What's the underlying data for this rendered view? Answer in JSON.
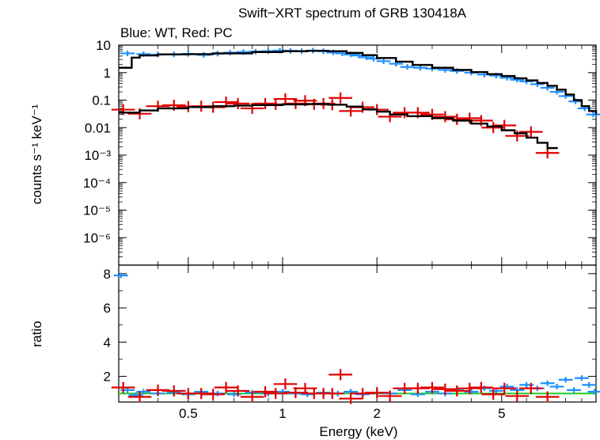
{
  "chart_data": {
    "type": "scatter",
    "title": "Swift−XRT spectrum of GRB 130418A",
    "subtitle": "Blue: WT, Red: PC",
    "xlabel": "Energy (keV)",
    "x_scale": "log",
    "xlim": [
      0.3,
      10
    ],
    "x_ticks": [
      {
        "value": 0.5,
        "label": "0.5"
      },
      {
        "value": 1,
        "label": "1"
      },
      {
        "value": 2,
        "label": "2"
      },
      {
        "value": 5,
        "label": "5"
      }
    ],
    "panels": [
      {
        "name": "spectrum",
        "ylabel": "counts s⁻¹ keV⁻¹",
        "y_scale": "log",
        "ylim": [
          1e-07,
          10
        ],
        "y_ticks": [
          {
            "value": 10,
            "label": "10"
          },
          {
            "value": 1,
            "label": "1"
          },
          {
            "value": 0.1,
            "label": "0.1"
          },
          {
            "value": 0.01,
            "label": "0.01"
          },
          {
            "value": 0.001,
            "label": "10⁻³"
          },
          {
            "value": 0.0001,
            "label": "10⁻⁴"
          },
          {
            "value": 1e-05,
            "label": "10⁻⁵"
          },
          {
            "value": 1e-06,
            "label": "10⁻⁶"
          }
        ],
        "series": [
          {
            "color": "#1E90FF",
            "x": [
              0.32,
              0.36,
              0.4,
              0.45,
              0.5,
              0.56,
              0.62,
              0.68,
              0.75,
              0.82,
              0.9,
              0.98,
              1.06,
              1.15,
              1.25,
              1.35,
              1.45,
              1.55,
              1.65,
              1.75,
              1.85,
              1.95,
              2.1,
              2.3,
              2.5,
              2.75,
              3.0,
              3.3,
              3.6,
              4.0,
              4.4,
              4.8,
              5.2,
              5.6,
              6.0,
              6.5,
              7.0,
              7.5,
              8.0,
              8.6,
              9.2,
              9.8
            ],
            "y": [
              5.0,
              4.7,
              4.5,
              4.6,
              4.8,
              4.4,
              4.9,
              5.3,
              5.6,
              5.8,
              6.0,
              6.3,
              6.2,
              6.0,
              6.3,
              6.0,
              5.4,
              5.0,
              4.6,
              4.2,
              3.6,
              3.2,
              2.6,
              2.1,
              1.6,
              1.5,
              1.4,
              1.25,
              1.15,
              1.0,
              0.85,
              0.78,
              0.65,
              0.55,
              0.48,
              0.38,
              0.28,
              0.2,
              0.14,
              0.09,
              0.05,
              0.03
            ]
          },
          {
            "color": "#E00000",
            "x": [
              0.31,
              0.35,
              0.4,
              0.45,
              0.5,
              0.55,
              0.6,
              0.66,
              0.72,
              0.8,
              0.88,
              0.95,
              1.02,
              1.1,
              1.18,
              1.26,
              1.35,
              1.44,
              1.53,
              1.65,
              1.8,
              2.0,
              2.2,
              2.45,
              2.7,
              3.0,
              3.3,
              3.6,
              3.95,
              4.3,
              4.7,
              5.1,
              5.6,
              6.2,
              7.0
            ],
            "y": [
              0.045,
              0.032,
              0.06,
              0.065,
              0.058,
              0.06,
              0.055,
              0.085,
              0.075,
              0.05,
              0.075,
              0.07,
              0.11,
              0.075,
              0.095,
              0.07,
              0.075,
              0.068,
              0.12,
              0.04,
              0.055,
              0.045,
              0.025,
              0.035,
              0.035,
              0.03,
              0.025,
              0.02,
              0.022,
              0.018,
              0.01,
              0.012,
              0.005,
              0.007,
              0.0012
            ]
          }
        ],
        "model_lines": [
          {
            "color": "#000000",
            "x": [
              0.3,
              0.32,
              0.33,
              0.35,
              0.4,
              0.5,
              0.6,
              0.8,
              1.0,
              1.2,
              1.4,
              1.6,
              1.8,
              2.0,
              2.3,
              2.6,
              3.0,
              3.5,
              4.0,
              4.5,
              5.0,
              5.5,
              6.0,
              6.5,
              7.0,
              7.5,
              8.0,
              8.5,
              9.0,
              9.5,
              10.0
            ],
            "y": [
              1.5,
              1.5,
              3.5,
              4.2,
              4.6,
              4.7,
              5.0,
              5.6,
              6.0,
              6.2,
              6.0,
              5.2,
              4.3,
              3.4,
              2.5,
              1.9,
              1.5,
              1.25,
              1.05,
              0.88,
              0.75,
              0.62,
              0.52,
              0.42,
              0.33,
              0.24,
              0.16,
              0.1,
              0.06,
              0.04,
              0.03
            ]
          },
          {
            "color": "#000000",
            "x": [
              0.3,
              0.35,
              0.4,
              0.5,
              0.6,
              0.7,
              0.8,
              1.0,
              1.2,
              1.4,
              1.6,
              1.8,
              2.0,
              2.2,
              2.5,
              3.0,
              3.5,
              4.0,
              4.5,
              5.0,
              5.5,
              6.0,
              6.5,
              7.0,
              7.5
            ],
            "y": [
              0.035,
              0.042,
              0.05,
              0.056,
              0.06,
              0.063,
              0.066,
              0.07,
              0.072,
              0.068,
              0.058,
              0.046,
              0.038,
              0.03,
              0.026,
              0.022,
              0.018,
              0.014,
              0.011,
              0.008,
              0.0062,
              0.0043,
              0.0028,
              0.0018,
              0.0017
            ]
          }
        ]
      },
      {
        "name": "ratio",
        "ylabel": "ratio",
        "y_scale": "linear",
        "ylim": [
          0.5,
          8.5
        ],
        "y_ticks": [
          {
            "value": 2,
            "label": "2"
          },
          {
            "value": 4,
            "label": "4"
          },
          {
            "value": 6,
            "label": "6"
          },
          {
            "value": 8,
            "label": "8"
          }
        ],
        "reference_line": {
          "y": 1,
          "color": "#22CC22"
        },
        "series": [
          {
            "color": "#1E90FF",
            "x": [
              0.305,
              0.32,
              0.34,
              0.36,
              0.4,
              0.45,
              0.5,
              0.55,
              0.62,
              0.7,
              0.8,
              0.9,
              1.0,
              1.1,
              1.2,
              1.35,
              1.5,
              1.65,
              1.8,
              2.0,
              2.2,
              2.45,
              2.7,
              3.0,
              3.3,
              3.6,
              4.0,
              4.4,
              4.8,
              5.2,
              5.6,
              6.0,
              6.5,
              7.0,
              7.5,
              8.0,
              8.5,
              9.0,
              9.5,
              9.9
            ],
            "y": [
              7.9,
              1.2,
              0.9,
              1.1,
              1.0,
              1.05,
              0.95,
              1.1,
              1.0,
              0.95,
              1.05,
              1.0,
              1.1,
              1.0,
              0.95,
              1.05,
              1.0,
              1.1,
              0.95,
              1.05,
              1.0,
              1.2,
              0.95,
              1.1,
              1.0,
              1.2,
              1.1,
              1.3,
              1.15,
              1.4,
              1.2,
              1.5,
              1.3,
              1.6,
              1.4,
              1.8,
              1.2,
              1.9,
              1.5,
              1.1
            ]
          },
          {
            "color": "#E00000",
            "x": [
              0.31,
              0.35,
              0.4,
              0.45,
              0.5,
              0.55,
              0.6,
              0.66,
              0.72,
              0.8,
              0.88,
              0.95,
              1.02,
              1.1,
              1.18,
              1.26,
              1.35,
              1.44,
              1.53,
              1.65,
              1.8,
              2.0,
              2.2,
              2.45,
              2.7,
              3.0,
              3.3,
              3.6,
              3.95,
              4.3,
              4.7,
              5.1,
              5.6,
              6.2,
              7.0
            ],
            "y": [
              1.35,
              0.8,
              1.2,
              1.15,
              1.0,
              1.0,
              0.95,
              1.35,
              1.15,
              0.8,
              1.1,
              1.0,
              1.55,
              1.05,
              1.3,
              1.0,
              1.0,
              1.0,
              2.1,
              0.7,
              1.0,
              1.05,
              0.85,
              1.3,
              1.3,
              1.35,
              1.25,
              1.15,
              1.3,
              1.35,
              0.95,
              1.3,
              0.85,
              1.3,
              0.8
            ]
          }
        ]
      }
    ]
  }
}
